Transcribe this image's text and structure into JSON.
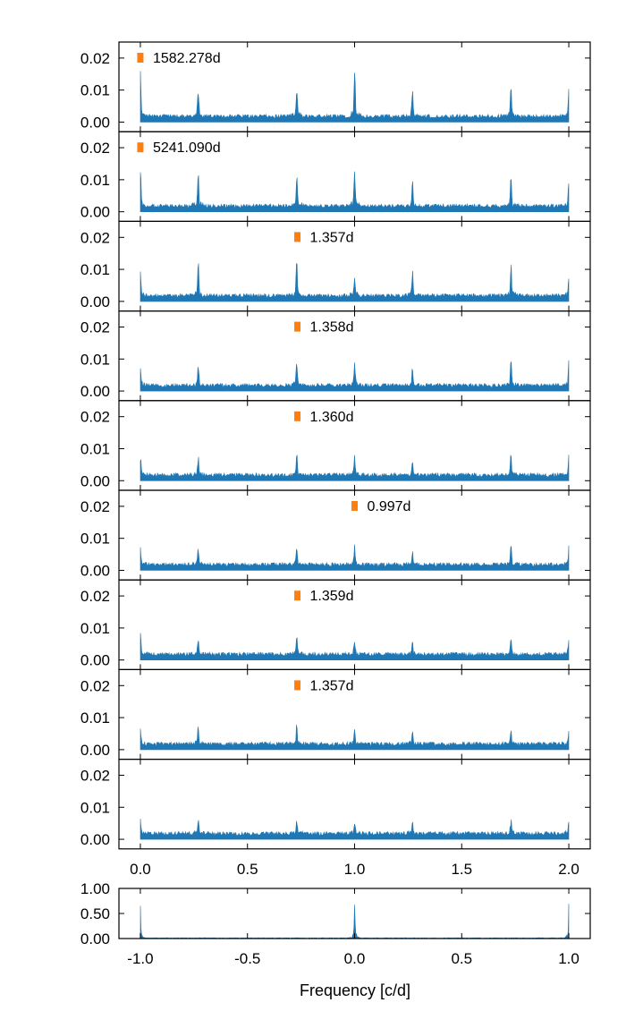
{
  "colors": {
    "spectrum": "#1f77b4",
    "marker": "#ff7f0e",
    "axes": "#000000"
  },
  "chart_data": [
    {
      "type": "line",
      "title": "",
      "subtitle": "",
      "ylabel": "",
      "xlabel": "",
      "xlim": [
        -0.1,
        2.1
      ],
      "ylim": [
        -0.003,
        0.025
      ],
      "xticks": [
        "0.0",
        "0.5",
        "1.0",
        "1.5",
        "2.0"
      ],
      "yticks": [
        "0.00",
        "0.01",
        "0.02"
      ],
      "grid": false,
      "legend": "none",
      "panels": [
        {
          "label": "1582.278d",
          "marker_x": 0.0,
          "peaks": [
            {
              "x": 0.0,
              "h": 0.0175
            },
            {
              "x": 0.27,
              "h": 0.0105
            },
            {
              "x": 0.73,
              "h": 0.0115
            },
            {
              "x": 1.0,
              "h": 0.0155
            },
            {
              "x": 1.27,
              "h": 0.009
            },
            {
              "x": 1.73,
              "h": 0.0105
            },
            {
              "x": 2.0,
              "h": 0.008
            }
          ]
        },
        {
          "label": "5241.090d",
          "marker_x": 0.0,
          "peaks": [
            {
              "x": 0.0,
              "h": 0.0125
            },
            {
              "x": 0.27,
              "h": 0.0105
            },
            {
              "x": 0.73,
              "h": 0.0115
            },
            {
              "x": 1.0,
              "h": 0.0115
            },
            {
              "x": 1.27,
              "h": 0.009
            },
            {
              "x": 1.73,
              "h": 0.0105
            },
            {
              "x": 2.0,
              "h": 0.0075
            }
          ]
        },
        {
          "label": "1.357d",
          "marker_x": 0.733,
          "peaks": [
            {
              "x": 0.0,
              "h": 0.0075
            },
            {
              "x": 0.27,
              "h": 0.0105
            },
            {
              "x": 0.73,
              "h": 0.0118
            },
            {
              "x": 1.0,
              "h": 0.0075
            },
            {
              "x": 1.27,
              "h": 0.009
            },
            {
              "x": 1.73,
              "h": 0.0105
            },
            {
              "x": 2.0,
              "h": 0.0075
            }
          ]
        },
        {
          "label": "1.358d",
          "marker_x": 0.733,
          "peaks": [
            {
              "x": 0.0,
              "h": 0.007
            },
            {
              "x": 0.27,
              "h": 0.0075
            },
            {
              "x": 0.73,
              "h": 0.009
            },
            {
              "x": 1.0,
              "h": 0.0075
            },
            {
              "x": 1.27,
              "h": 0.0058
            },
            {
              "x": 1.73,
              "h": 0.008
            },
            {
              "x": 2.0,
              "h": 0.0075
            }
          ]
        },
        {
          "label": "1.360d",
          "marker_x": 0.733,
          "peaks": [
            {
              "x": 0.0,
              "h": 0.007
            },
            {
              "x": 0.27,
              "h": 0.0058
            },
            {
              "x": 0.73,
              "h": 0.0075
            },
            {
              "x": 1.0,
              "h": 0.0065
            },
            {
              "x": 1.27,
              "h": 0.005
            },
            {
              "x": 1.73,
              "h": 0.007
            },
            {
              "x": 2.0,
              "h": 0.0065
            }
          ]
        },
        {
          "label": "0.997d",
          "marker_x": 1.0,
          "peaks": [
            {
              "x": 0.0,
              "h": 0.0068
            },
            {
              "x": 0.27,
              "h": 0.0055
            },
            {
              "x": 0.73,
              "h": 0.0068
            },
            {
              "x": 1.0,
              "h": 0.0065
            },
            {
              "x": 1.27,
              "h": 0.0045
            },
            {
              "x": 1.73,
              "h": 0.006
            },
            {
              "x": 2.0,
              "h": 0.006
            }
          ]
        },
        {
          "label": "1.359d",
          "marker_x": 0.733,
          "peaks": [
            {
              "x": 0.0,
              "h": 0.0058
            },
            {
              "x": 0.27,
              "h": 0.0058
            },
            {
              "x": 0.73,
              "h": 0.0062
            },
            {
              "x": 1.0,
              "h": 0.005
            },
            {
              "x": 1.27,
              "h": 0.0045
            },
            {
              "x": 1.73,
              "h": 0.006
            },
            {
              "x": 2.0,
              "h": 0.0055
            }
          ]
        },
        {
          "label": "1.357d",
          "marker_x": 0.733,
          "peaks": [
            {
              "x": 0.0,
              "h": 0.0055
            },
            {
              "x": 0.27,
              "h": 0.0055
            },
            {
              "x": 0.73,
              "h": 0.006
            },
            {
              "x": 1.0,
              "h": 0.0052
            },
            {
              "x": 1.27,
              "h": 0.0042
            },
            {
              "x": 1.73,
              "h": 0.0055
            },
            {
              "x": 2.0,
              "h": 0.0052
            }
          ]
        },
        {
          "label": "",
          "marker_x": null,
          "peaks": [
            {
              "x": 0.0,
              "h": 0.0048
            },
            {
              "x": 0.27,
              "h": 0.0045
            },
            {
              "x": 0.73,
              "h": 0.0048
            },
            {
              "x": 1.0,
              "h": 0.0045
            },
            {
              "x": 1.27,
              "h": 0.004
            },
            {
              "x": 1.73,
              "h": 0.0045
            },
            {
              "x": 2.0,
              "h": 0.0042
            }
          ]
        }
      ]
    },
    {
      "type": "line",
      "title": "",
      "subtitle": "",
      "ylabel": "",
      "xlabel": "Frequency [c/d]",
      "xlim": [
        -1.1,
        1.1
      ],
      "ylim": [
        0,
        1.0
      ],
      "xticks": [
        "-1.0",
        "-0.5",
        "0.0",
        "0.5",
        "1.0"
      ],
      "yticks": [
        "0.00",
        "0.50",
        "1.00"
      ],
      "grid": false,
      "legend": "none",
      "peaks": [
        {
          "x": -1.0,
          "h": 0.75
        },
        {
          "x": 0.0,
          "h": 1.0
        },
        {
          "x": 1.0,
          "h": 0.75
        }
      ]
    }
  ]
}
